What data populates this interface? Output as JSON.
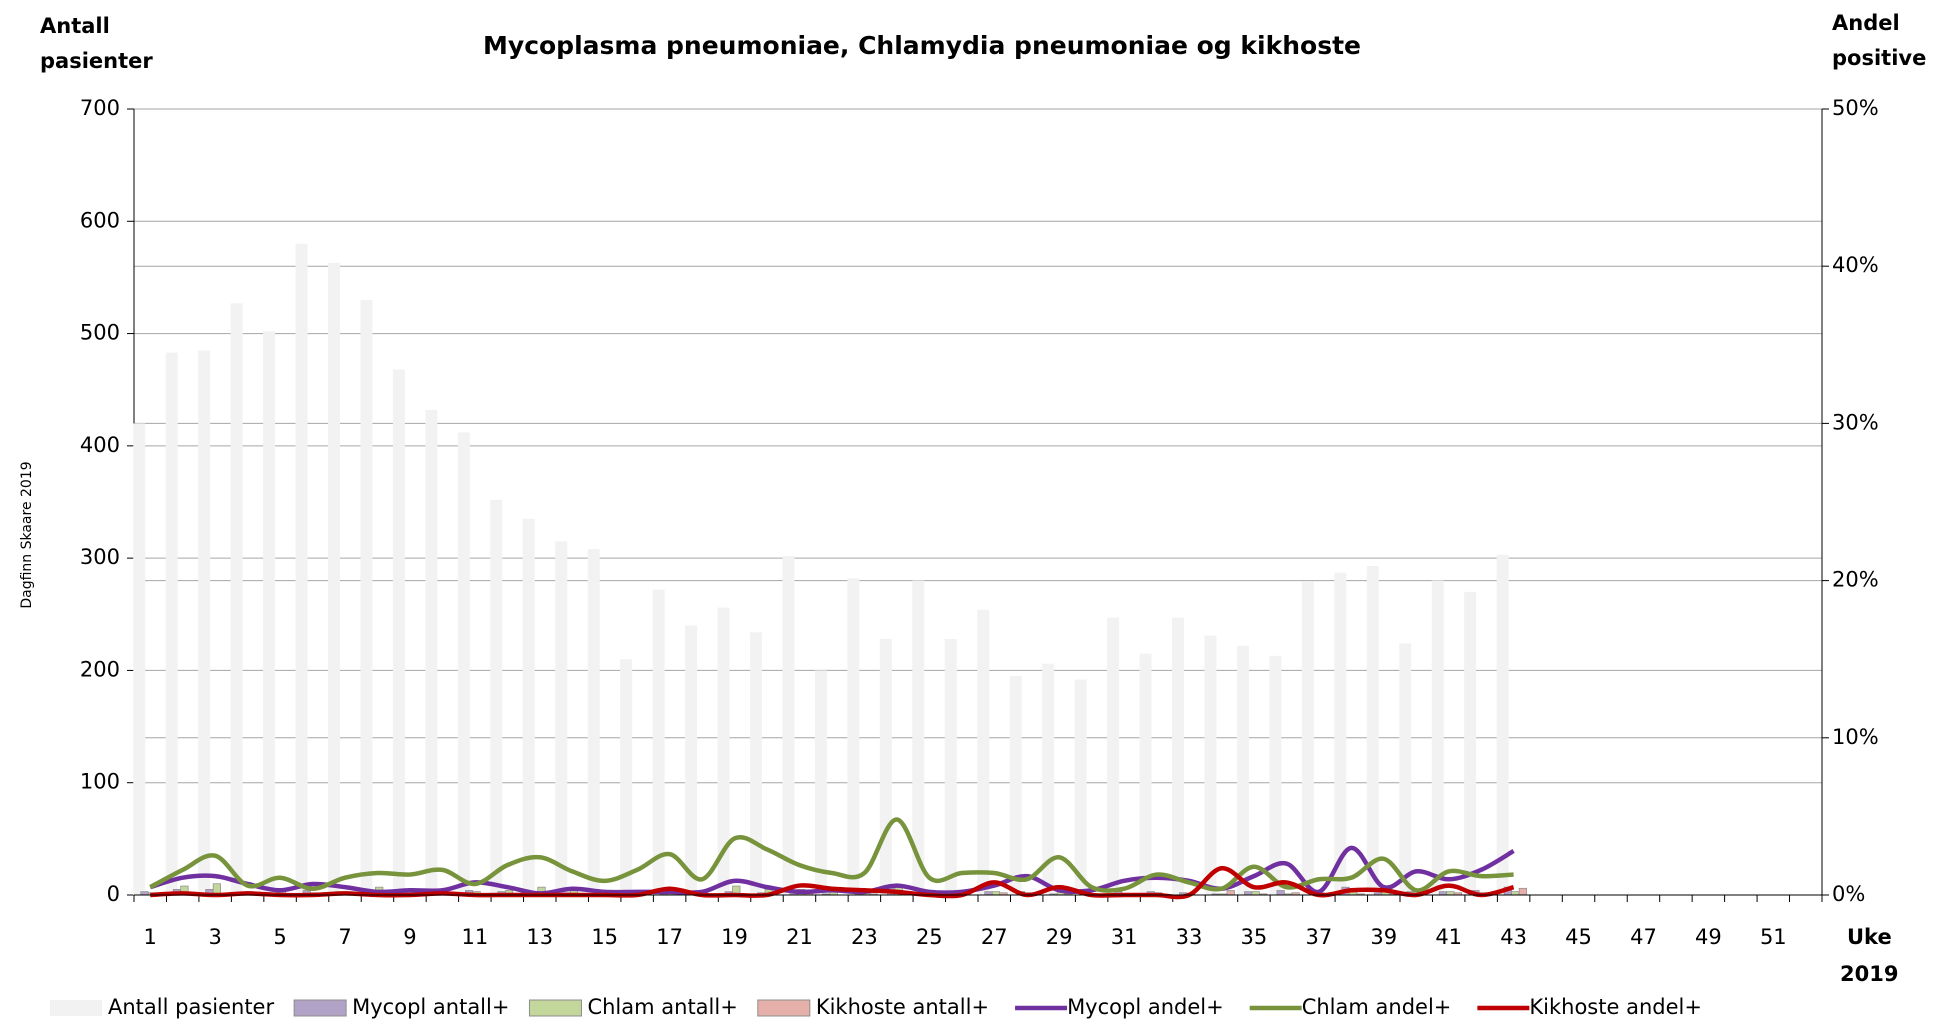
{
  "chart_data": {
    "type": "bar",
    "title": "Mycoplasma pneumoniae, Chlamydia pneumoniae og kikhoste",
    "ylabel": [
      "Antall",
      "pasienter"
    ],
    "y2label": [
      "Andel",
      "positive"
    ],
    "xlabel": [
      "Uke",
      "2019"
    ],
    "credit": "Dagfinn Skaare 2019",
    "categories": [
      1,
      null,
      3,
      null,
      5,
      null,
      7,
      null,
      9,
      null,
      11,
      null,
      13,
      null,
      15,
      null,
      17,
      null,
      19,
      null,
      21,
      null,
      23,
      null,
      25,
      null,
      27,
      null,
      29,
      null,
      31,
      null,
      33,
      null,
      35,
      null,
      37,
      null,
      39,
      null,
      41,
      null,
      43,
      null,
      45,
      null,
      47,
      null,
      49,
      null,
      51,
      null
    ],
    "ylim": [
      0,
      700
    ],
    "yticks": [
      0,
      100,
      200,
      300,
      400,
      500,
      600,
      700
    ],
    "y2lim": [
      0,
      50
    ],
    "y2ticks": [
      {
        "value": 0,
        "label": "0%"
      },
      {
        "value": 10,
        "label": "10%"
      },
      {
        "value": 20,
        "label": "20%"
      },
      {
        "value": 30,
        "label": "30%"
      },
      {
        "value": 40,
        "label": "40%"
      },
      {
        "value": 50,
        "label": "50%"
      }
    ],
    "grid": true,
    "legend": "bottom",
    "series": [
      {
        "name": "Antall pasienter",
        "type": "bar",
        "color": "#f2f2f2",
        "values": [
          420,
          483,
          485,
          527,
          502,
          580,
          563,
          530,
          468,
          432,
          412,
          352,
          335,
          315,
          308,
          210,
          272,
          240,
          256,
          234,
          302,
          200,
          282,
          228,
          280,
          228,
          254,
          195,
          206,
          192,
          247,
          215,
          247,
          231,
          222,
          213,
          279,
          287,
          293,
          224,
          280,
          270,
          303,
          null,
          null,
          null,
          null,
          null,
          null,
          null,
          null,
          null
        ]
      },
      {
        "name": "Mycopl antall+",
        "type": "bar",
        "color": "#b3a2c7",
        "values": [
          3,
          5,
          5,
          2,
          2,
          4,
          3,
          2,
          2,
          2,
          4,
          3,
          1,
          2,
          1,
          1,
          1,
          1,
          3,
          2,
          2,
          1,
          1,
          8,
          1,
          1,
          3,
          3,
          1,
          1,
          3,
          3,
          2,
          1,
          3,
          4,
          1,
          7,
          2,
          3,
          3,
          4,
          7,
          null,
          null,
          null,
          null,
          null,
          null,
          null,
          null,
          null
        ]
      },
      {
        "name": "Chlam antall+",
        "type": "bar",
        "color": "#c3d69b",
        "values": [
          2,
          8,
          10,
          3,
          4,
          2,
          3,
          7,
          4,
          5,
          3,
          4,
          7,
          4,
          2,
          3,
          5,
          2,
          8,
          5,
          5,
          3,
          3,
          7,
          3,
          3,
          3,
          2,
          4,
          1,
          1,
          2,
          1,
          1,
          3,
          1,
          2,
          3,
          3,
          1,
          3,
          2,
          3,
          null,
          null,
          null,
          null,
          null,
          null,
          null,
          null,
          null
        ]
      },
      {
        "name": "Kikhoste antall+",
        "type": "bar",
        "color": "#e6b0aa",
        "values": [
          0,
          1,
          0,
          1,
          0,
          0,
          1,
          0,
          0,
          1,
          0,
          0,
          0,
          0,
          0,
          0,
          1,
          0,
          0,
          0,
          2,
          0,
          1,
          0,
          0,
          0,
          2,
          0,
          1,
          0,
          0,
          0,
          0,
          4,
          1,
          2,
          0,
          1,
          1,
          0,
          2,
          0,
          6,
          null,
          null,
          null,
          null,
          null,
          null,
          null,
          null,
          null
        ]
      },
      {
        "name": "Mycopl andel+",
        "type": "line",
        "axis": "y2",
        "color": "#7030a0",
        "values": [
          0.5,
          1.1,
          1.2,
          0.7,
          0.3,
          0.7,
          0.5,
          0.2,
          0.3,
          0.3,
          0.8,
          0.5,
          0.1,
          0.4,
          0.2,
          0.2,
          0.2,
          0.2,
          0.9,
          0.5,
          0.2,
          0.3,
          0.2,
          0.6,
          0.2,
          0.2,
          0.6,
          1.2,
          0.3,
          0.3,
          0.9,
          1.1,
          0.9,
          0.4,
          1.2,
          2.0,
          0.2,
          3.0,
          0.5,
          1.5,
          1.0,
          1.6,
          2.8,
          null,
          null,
          null,
          null,
          null,
          null,
          null,
          null,
          null
        ]
      },
      {
        "name": "Chlam andel+",
        "type": "line",
        "axis": "y2",
        "color": "#77933c",
        "values": [
          0.5,
          1.6,
          2.5,
          0.6,
          1.1,
          0.4,
          1.1,
          1.4,
          1.3,
          1.6,
          0.7,
          1.9,
          2.4,
          1.5,
          0.9,
          1.6,
          2.6,
          1.0,
          3.6,
          2.9,
          1.9,
          1.4,
          1.4,
          4.8,
          1.1,
          1.4,
          1.4,
          1.0,
          2.4,
          0.5,
          0.4,
          1.3,
          0.8,
          0.4,
          1.8,
          0.5,
          1.0,
          1.1,
          2.3,
          0.3,
          1.5,
          1.2,
          1.3,
          null,
          null,
          null,
          null,
          null,
          null,
          null,
          null,
          null
        ]
      },
      {
        "name": "Kikhoste andel+",
        "type": "line",
        "axis": "y2",
        "color": "#c00000",
        "values": [
          0,
          0.1,
          0,
          0.1,
          0,
          0,
          0.1,
          0,
          0,
          0.1,
          0,
          0,
          0,
          0,
          0,
          0,
          0.4,
          0,
          0,
          0,
          0.6,
          0.4,
          0.3,
          0.2,
          0,
          0,
          0.8,
          0,
          0.5,
          0,
          0,
          0,
          0,
          1.7,
          0.5,
          0.8,
          0,
          0.3,
          0.3,
          0,
          0.6,
          0,
          0.5,
          null,
          null,
          null,
          null,
          null,
          null,
          null,
          null,
          null
        ]
      }
    ]
  }
}
